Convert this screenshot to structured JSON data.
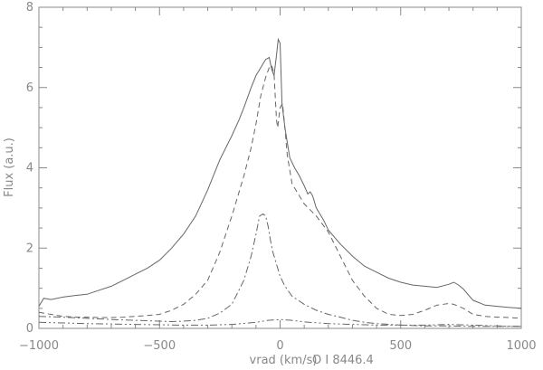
{
  "chart_data": {
    "type": "line",
    "title": "",
    "xlabel": "vrad (km/s)",
    "ylabel": "Flux (a.u.)",
    "annotation": "O I 8446.4",
    "xlim": [
      -1000,
      1000
    ],
    "ylim": [
      0,
      8
    ],
    "xticks": [
      -1000,
      -500,
      0,
      500,
      1000
    ],
    "yticks": [
      0,
      2,
      4,
      6,
      8
    ],
    "grid": false,
    "legend": "none",
    "colors": {
      "axis": "#888888",
      "line": "#666666"
    },
    "series": [
      {
        "style": "solid",
        "x": [
          -1000,
          -980,
          -950,
          -900,
          -850,
          -800,
          -750,
          -700,
          -650,
          -600,
          -550,
          -500,
          -450,
          -400,
          -350,
          -300,
          -250,
          -200,
          -170,
          -150,
          -120,
          -100,
          -80,
          -60,
          -45,
          -35,
          -25,
          -15,
          -8,
          0,
          8,
          20,
          40,
          60,
          80,
          100,
          115,
          125,
          135,
          150,
          180,
          200,
          250,
          300,
          350,
          400,
          450,
          500,
          550,
          600,
          650,
          700,
          720,
          740,
          760,
          800,
          850,
          900,
          950,
          1000
        ],
        "y": [
          0.55,
          0.75,
          0.72,
          0.78,
          0.82,
          0.85,
          0.95,
          1.05,
          1.2,
          1.35,
          1.5,
          1.7,
          2.0,
          2.35,
          2.8,
          3.45,
          4.2,
          4.8,
          5.2,
          5.5,
          6.0,
          6.3,
          6.5,
          6.7,
          6.75,
          6.45,
          6.3,
          6.8,
          7.2,
          7.1,
          5.6,
          5.0,
          4.25,
          4.0,
          3.8,
          3.55,
          3.35,
          3.4,
          3.3,
          3.0,
          2.7,
          2.45,
          2.1,
          1.8,
          1.55,
          1.4,
          1.25,
          1.15,
          1.08,
          1.05,
          1.02,
          1.1,
          1.15,
          1.08,
          0.98,
          0.7,
          0.58,
          0.55,
          0.52,
          0.5
        ]
      },
      {
        "style": "dashed",
        "x": [
          -1000,
          -950,
          -900,
          -850,
          -800,
          -750,
          -700,
          -650,
          -600,
          -550,
          -500,
          -450,
          -400,
          -350,
          -300,
          -250,
          -200,
          -150,
          -120,
          -100,
          -80,
          -60,
          -45,
          -35,
          -25,
          -15,
          -10,
          0,
          10,
          20,
          30,
          50,
          100,
          150,
          200,
          250,
          300,
          350,
          400,
          450,
          500,
          550,
          600,
          650,
          700,
          720,
          740,
          760,
          800,
          850,
          900,
          950,
          1000
        ],
        "y": [
          0.4,
          0.35,
          0.3,
          0.28,
          0.28,
          0.27,
          0.27,
          0.28,
          0.3,
          0.32,
          0.35,
          0.45,
          0.6,
          0.85,
          1.2,
          1.9,
          2.8,
          3.8,
          4.5,
          5.1,
          5.8,
          6.25,
          6.5,
          6.55,
          6.35,
          5.2,
          5.0,
          5.5,
          5.6,
          5.0,
          4.3,
          3.6,
          3.1,
          2.8,
          2.4,
          1.8,
          1.2,
          0.8,
          0.5,
          0.35,
          0.32,
          0.35,
          0.45,
          0.58,
          0.62,
          0.6,
          0.55,
          0.5,
          0.35,
          0.3,
          0.28,
          0.27,
          0.25
        ]
      },
      {
        "style": "dash-dot",
        "x": [
          -1000,
          -900,
          -800,
          -700,
          -600,
          -500,
          -450,
          -400,
          -350,
          -300,
          -250,
          -200,
          -150,
          -120,
          -100,
          -85,
          -70,
          -60,
          -50,
          -40,
          -30,
          -20,
          -10,
          0,
          20,
          50,
          100,
          150,
          200,
          250,
          300,
          350,
          400,
          500,
          600,
          700,
          800,
          900,
          1000
        ],
        "y": [
          0.3,
          0.28,
          0.25,
          0.22,
          0.2,
          0.18,
          0.17,
          0.18,
          0.2,
          0.25,
          0.38,
          0.6,
          1.2,
          1.8,
          2.35,
          2.8,
          2.85,
          2.8,
          2.55,
          2.2,
          1.9,
          1.7,
          1.5,
          1.3,
          1.05,
          0.8,
          0.6,
          0.45,
          0.35,
          0.28,
          0.2,
          0.15,
          0.12,
          0.08,
          0.06,
          0.06,
          0.05,
          0.05,
          0.05
        ]
      },
      {
        "style": "dash-dot-dot",
        "x": [
          -1000,
          -800,
          -600,
          -400,
          -300,
          -200,
          -100,
          -50,
          0,
          50,
          100,
          200,
          300,
          400,
          500,
          600,
          700,
          800,
          900,
          1000
        ],
        "y": [
          0.15,
          0.12,
          0.1,
          0.08,
          0.08,
          0.1,
          0.15,
          0.2,
          0.22,
          0.2,
          0.16,
          0.12,
          0.1,
          0.08,
          0.08,
          0.08,
          0.1,
          0.08,
          0.06,
          0.05
        ]
      }
    ]
  }
}
